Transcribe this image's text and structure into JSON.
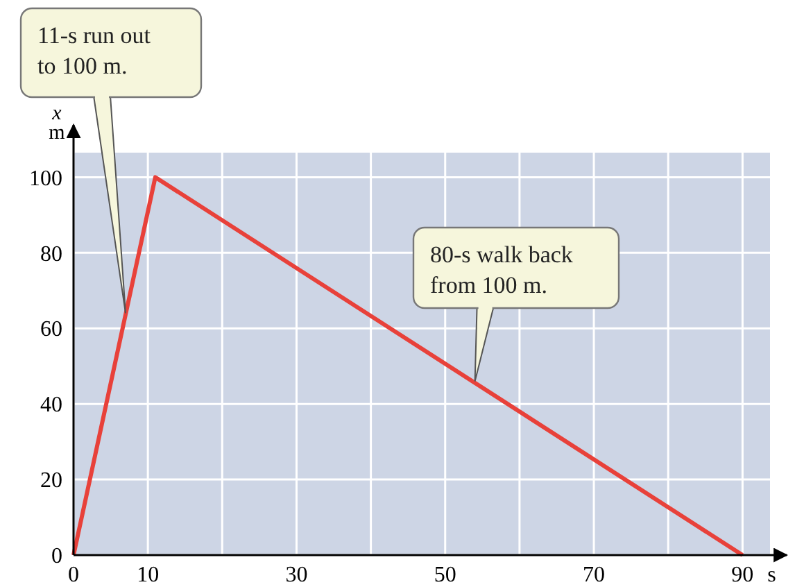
{
  "chart_data": {
    "type": "line",
    "x": [
      0,
      11,
      90
    ],
    "series": [
      {
        "color": "#e8413a",
        "values": [
          0,
          100,
          0
        ]
      }
    ],
    "xlim": [
      0,
      93.7
    ],
    "ylim": [
      0,
      106.5
    ],
    "xticks": [
      0,
      {
        "value": 10,
        "label": "10"
      },
      {
        "value": 20,
        "label": null
      },
      30,
      {
        "value": 40,
        "label": null
      },
      50,
      {
        "value": 60,
        "label": null
      },
      70,
      {
        "value": 80,
        "label": null
      },
      90
    ],
    "yticks": [
      0,
      20,
      40,
      60,
      80,
      100
    ],
    "xlabel": "s",
    "ylabel": "x m",
    "grid": true,
    "marker": "none",
    "line_style": "solid",
    "annotations": [
      {
        "text": "11-s run out to 100 m.",
        "x": 7,
        "y": 64
      },
      {
        "text": "80-s walk back from 100 m.",
        "x": 54,
        "y": 46
      }
    ]
  }
}
